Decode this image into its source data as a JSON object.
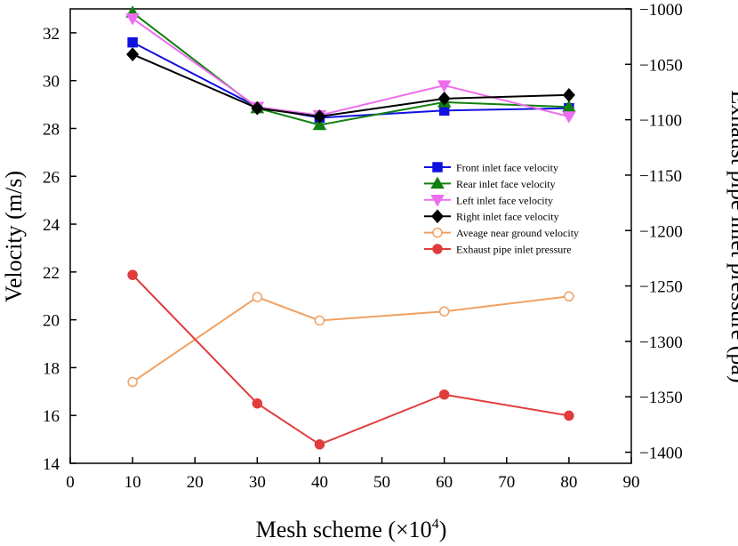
{
  "chart_data": {
    "type": "line",
    "x": [
      10,
      30,
      40,
      60,
      80
    ],
    "xlabel": "Mesh scheme (×10",
    "xlabel_exponent": "4",
    "xlabel_close": ")",
    "ylabel_left": "Velocity (m/s)",
    "ylabel_right": "Exhaust pipe inlet pressure (pa)",
    "xlim": [
      0,
      90
    ],
    "ylim_left": [
      14,
      33
    ],
    "ylim_right": [
      -1410,
      -1000
    ],
    "xticks": [
      0,
      10,
      20,
      30,
      40,
      50,
      60,
      70,
      80,
      90
    ],
    "yticks_left": [
      14,
      16,
      18,
      20,
      22,
      24,
      26,
      28,
      30,
      32
    ],
    "yticks_right": [
      -1000,
      -1050,
      -1100,
      -1150,
      -1200,
      -1250,
      -1300,
      -1350,
      -1400
    ],
    "xtick_labels": [
      "0",
      "10",
      "20",
      "30",
      "40",
      "50",
      "60",
      "70",
      "80",
      "90"
    ],
    "ytick_left_labels": [
      "14",
      "16",
      "18",
      "20",
      "22",
      "24",
      "26",
      "28",
      "30",
      "32"
    ],
    "ytick_right_labels": [
      "−1000",
      "−1050",
      "−1100",
      "−1150",
      "−1200",
      "−1250",
      "−1300",
      "−1350",
      "−1400"
    ],
    "legend_position": "right-center",
    "grid": false,
    "series": [
      {
        "name": "Front inlet face velocity",
        "axis": "left",
        "color": "#1010e0",
        "marker": "square",
        "filled": true,
        "values": [
          31.6,
          28.9,
          28.45,
          28.75,
          28.85
        ]
      },
      {
        "name": "Rear inlet face velocity",
        "axis": "left",
        "color": "#108010",
        "marker": "triangle-up",
        "filled": true,
        "values": [
          32.85,
          28.85,
          28.15,
          29.1,
          28.9
        ]
      },
      {
        "name": "Left inlet face velocity",
        "axis": "left",
        "color": "#ee6cee",
        "marker": "triangle-down",
        "filled": true,
        "values": [
          32.6,
          28.9,
          28.55,
          29.8,
          28.5
        ]
      },
      {
        "name": "Right inlet face velocity",
        "axis": "left",
        "color": "#000000",
        "marker": "diamond",
        "filled": true,
        "values": [
          31.1,
          28.85,
          28.5,
          29.25,
          29.4
        ]
      },
      {
        "name": "Aveage near ground velocity",
        "axis": "left",
        "color": "#f0a060",
        "marker": "circle",
        "filled": false,
        "values": [
          17.4,
          20.95,
          19.97,
          20.35,
          20.98
        ]
      },
      {
        "name": "Exhaust pipe inlet pressure",
        "axis": "right",
        "color": "#e03c3c",
        "marker": "circle",
        "filled": true,
        "values": [
          -1240,
          -1356,
          -1393,
          -1348,
          -1367
        ]
      }
    ]
  }
}
